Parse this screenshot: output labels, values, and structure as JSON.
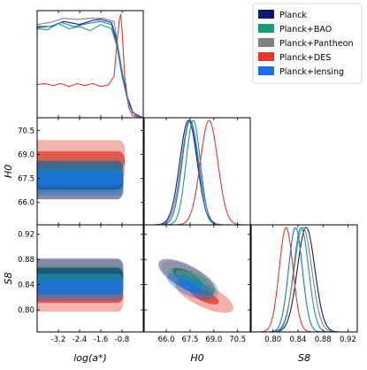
{
  "chart_data": {
    "type": "corner",
    "legend": {
      "placement": "top-right",
      "entries": [
        "Planck",
        "Planck+BAO",
        "Planck+Pantheon",
        "Planck+DES",
        "Planck+lensing"
      ]
    },
    "colors": {
      "Planck": "#0d1a6b",
      "Planck+BAO": "#1a9e7a",
      "Planck+Pantheon": "#808080",
      "Planck+DES": "#e0392b",
      "Planck+lensing": "#1e6fe0"
    },
    "parameters": [
      {
        "key": "loga",
        "label": "log(a*)",
        "range": [
          -4.0,
          0.0
        ],
        "ticks": [
          "-3.2",
          "-2.4",
          "-1.6",
          "-0.8"
        ]
      },
      {
        "key": "H0",
        "label": "H0",
        "range": [
          64.6,
          71.3
        ],
        "ticks": [
          "66.0",
          "67.5",
          "69.0",
          "70.5"
        ]
      },
      {
        "key": "S8",
        "label": "S8",
        "range": [
          0.765,
          0.935
        ],
        "ticks": [
          "0.80",
          "0.84",
          "0.88",
          "0.92"
        ]
      }
    ],
    "marginals": {
      "H0": [
        {
          "series": "Planck",
          "mean": 67.4,
          "sigma": 0.55
        },
        {
          "series": "Planck+BAO",
          "mean": 67.7,
          "sigma": 0.45
        },
        {
          "series": "Planck+Pantheon",
          "mean": 67.5,
          "sigma": 0.55
        },
        {
          "series": "Planck+DES",
          "mean": 68.7,
          "sigma": 0.55
        },
        {
          "series": "Planck+lensing",
          "mean": 67.5,
          "sigma": 0.5
        }
      ],
      "S8": [
        {
          "series": "Planck",
          "mean": 0.853,
          "sigma": 0.014
        },
        {
          "series": "Planck+BAO",
          "mean": 0.845,
          "sigma": 0.012
        },
        {
          "series": "Planck+Pantheon",
          "mean": 0.848,
          "sigma": 0.014
        },
        {
          "series": "Planck+DES",
          "mean": 0.821,
          "sigma": 0.011
        },
        {
          "series": "Planck+lensing",
          "mean": 0.836,
          "sigma": 0.011
        }
      ],
      "loga": [
        {
          "series": "Planck",
          "points": [
            [
              -4.0,
              0.88
            ],
            [
              -3.5,
              0.88
            ],
            [
              -3.0,
              0.93
            ],
            [
              -2.4,
              0.9
            ],
            [
              -1.9,
              0.94
            ],
            [
              -1.6,
              0.95
            ],
            [
              -1.2,
              0.92
            ],
            [
              -1.0,
              0.75
            ],
            [
              -0.8,
              0.45
            ],
            [
              -0.6,
              0.2
            ],
            [
              -0.4,
              0.06
            ],
            [
              -0.2,
              0.01
            ],
            [
              0.0,
              0.0
            ]
          ]
        },
        {
          "series": "Planck+BAO",
          "points": [
            [
              -4.0,
              0.86
            ],
            [
              -3.6,
              0.85
            ],
            [
              -3.2,
              0.91
            ],
            [
              -2.8,
              0.86
            ],
            [
              -2.4,
              0.88
            ],
            [
              -2.0,
              0.84
            ],
            [
              -1.6,
              0.9
            ],
            [
              -1.2,
              0.86
            ],
            [
              -1.0,
              0.7
            ],
            [
              -0.8,
              0.4
            ],
            [
              -0.6,
              0.18
            ],
            [
              -0.4,
              0.05
            ],
            [
              0.0,
              0.0
            ]
          ]
        },
        {
          "series": "Planck+Pantheon",
          "points": [
            [
              -4.0,
              0.9
            ],
            [
              -3.5,
              0.92
            ],
            [
              -3.0,
              0.96
            ],
            [
              -2.5,
              0.95
            ],
            [
              -2.0,
              0.96
            ],
            [
              -1.5,
              0.96
            ],
            [
              -1.1,
              0.93
            ],
            [
              -0.9,
              0.6
            ],
            [
              -0.7,
              0.3
            ],
            [
              -0.5,
              0.1
            ],
            [
              -0.3,
              0.02
            ],
            [
              0.0,
              0.0
            ]
          ]
        },
        {
          "series": "Planck+DES",
          "points": [
            [
              -4.0,
              0.32
            ],
            [
              -3.7,
              0.33
            ],
            [
              -3.4,
              0.31
            ],
            [
              -3.1,
              0.33
            ],
            [
              -2.8,
              0.3
            ],
            [
              -2.5,
              0.33
            ],
            [
              -2.2,
              0.31
            ],
            [
              -1.9,
              0.33
            ],
            [
              -1.6,
              0.3
            ],
            [
              -1.3,
              0.32
            ],
            [
              -1.1,
              0.4
            ],
            [
              -1.0,
              0.7
            ],
            [
              -0.9,
              0.95
            ],
            [
              -0.85,
              1.0
            ],
            [
              -0.8,
              0.85
            ],
            [
              -0.7,
              0.4
            ],
            [
              -0.55,
              0.1
            ],
            [
              -0.4,
              0.02
            ],
            [
              0.0,
              0.0
            ]
          ]
        },
        {
          "series": "Planck+lensing",
          "points": [
            [
              -4.0,
              0.87
            ],
            [
              -3.5,
              0.88
            ],
            [
              -3.1,
              0.92
            ],
            [
              -2.6,
              0.88
            ],
            [
              -2.1,
              0.91
            ],
            [
              -1.6,
              0.93
            ],
            [
              -1.2,
              0.9
            ],
            [
              -1.0,
              0.72
            ],
            [
              -0.8,
              0.42
            ],
            [
              -0.6,
              0.18
            ],
            [
              -0.4,
              0.05
            ],
            [
              0.0,
              0.0
            ]
          ]
        }
      ]
    },
    "contours": {
      "H0_vs_loga": [
        {
          "series": "Planck+DES",
          "x": [
            -4.0,
            -0.7
          ],
          "y_center": 68.6,
          "y_half_1sigma": 0.6,
          "y_half_2sigma": 1.3
        },
        {
          "series": "Planck+Pantheon",
          "x": [
            -4.0,
            -0.75
          ],
          "y_center": 67.5,
          "y_half_1sigma": 0.65,
          "y_half_2sigma": 1.3
        },
        {
          "series": "Planck",
          "x": [
            -4.0,
            -0.75
          ],
          "y_center": 67.4,
          "y_half_1sigma": 0.6,
          "y_half_2sigma": 1.2
        },
        {
          "series": "Planck+BAO",
          "x": [
            -4.0,
            -0.75
          ],
          "y_center": 67.6,
          "y_half_1sigma": 0.45,
          "y_half_2sigma": 0.95
        },
        {
          "series": "Planck+lensing",
          "x": [
            -4.0,
            -0.75
          ],
          "y_center": 67.45,
          "y_half_1sigma": 0.5,
          "y_half_2sigma": 1.0
        }
      ],
      "S8_vs_loga": [
        {
          "series": "Planck+DES",
          "x": [
            -4.0,
            -0.75
          ],
          "y_center": 0.823,
          "y_half_1sigma": 0.012,
          "y_half_2sigma": 0.026
        },
        {
          "series": "Planck+Pantheon",
          "x": [
            -4.0,
            -0.75
          ],
          "y_center": 0.85,
          "y_half_1sigma": 0.015,
          "y_half_2sigma": 0.03
        },
        {
          "series": "Planck",
          "x": [
            -4.0,
            -0.75
          ],
          "y_center": 0.853,
          "y_half_1sigma": 0.014,
          "y_half_2sigma": 0.029
        },
        {
          "series": "Planck+BAO",
          "x": [
            -4.0,
            -0.75
          ],
          "y_center": 0.845,
          "y_half_1sigma": 0.012,
          "y_half_2sigma": 0.025
        },
        {
          "series": "Planck+lensing",
          "x": [
            -4.0,
            -0.75
          ],
          "y_center": 0.836,
          "y_half_1sigma": 0.011,
          "y_half_2sigma": 0.022
        }
      ],
      "S8_vs_H0": [
        {
          "series": "Planck+DES",
          "center": [
            68.4,
            0.822
          ],
          "rx_1sigma": 1.0,
          "ry_1sigma": 0.016,
          "angle_deg": 25
        },
        {
          "series": "Planck",
          "center": [
            67.3,
            0.852
          ],
          "rx_1sigma": 1.0,
          "ry_1sigma": 0.017,
          "angle_deg": 28
        },
        {
          "series": "Planck+Pantheon",
          "center": [
            67.5,
            0.849
          ],
          "rx_1sigma": 1.0,
          "ry_1sigma": 0.017,
          "angle_deg": 28
        },
        {
          "series": "Planck+BAO",
          "center": [
            67.6,
            0.845
          ],
          "rx_1sigma": 0.8,
          "ry_1sigma": 0.014,
          "angle_deg": 25
        },
        {
          "series": "Planck+lensing",
          "center": [
            67.5,
            0.837
          ],
          "rx_1sigma": 0.8,
          "ry_1sigma": 0.013,
          "angle_deg": 25
        }
      ]
    }
  }
}
